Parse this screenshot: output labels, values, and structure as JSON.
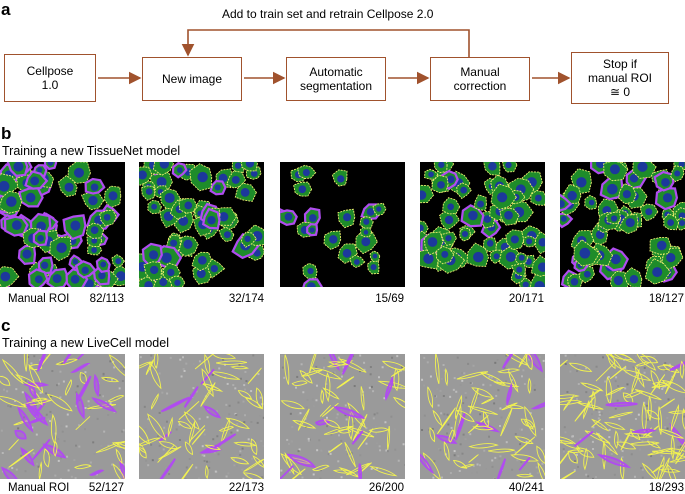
{
  "panel_a": {
    "letter": "a",
    "loop_label": "Add to train set and retrain Cellpose 2.0",
    "boxes": [
      {
        "id": "cellpose1",
        "label": "Cellpose\n1.0"
      },
      {
        "id": "new-image",
        "label": "New image"
      },
      {
        "id": "auto-seg",
        "label": "Automatic\nsegmentation"
      },
      {
        "id": "manual-corr",
        "label": "Manual\ncorrection"
      },
      {
        "id": "stop",
        "label": "Stop if\nmanual ROI\n≅ 0"
      }
    ],
    "colors": {
      "arrow": "#a0522d"
    }
  },
  "panel_b": {
    "letter": "b",
    "title": "Training a new TissueNet model",
    "caption": "Manual ROI",
    "ratios": [
      "82/113",
      "32/174",
      "15/69",
      "20/171",
      "18/127"
    ],
    "colors": {
      "background": "#000000",
      "cell": "#1e8c2a",
      "nucleus": "#1c2fa8",
      "outline": "#f0f070",
      "manual": "#b04cf0"
    }
  },
  "panel_c": {
    "letter": "c",
    "title": "Training a new LiveCell model",
    "caption": "Manual ROI",
    "ratios": [
      "52/127",
      "22/173",
      "26/200",
      "40/241",
      "18/293"
    ],
    "colors": {
      "background": "#9a9a9a",
      "outline": "#f2f250",
      "manual": "#b04cf0"
    }
  }
}
